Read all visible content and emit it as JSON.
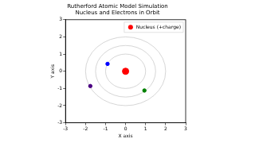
{
  "chart_data": {
    "type": "scatter",
    "title": "Rutherford Atomic Model Simulation",
    "subtitle": "Nucleus and Electrons in Orbit",
    "x_label": "X axis",
    "y_label": "Y axis",
    "xlim": [
      -3,
      3
    ],
    "ylim": [
      -3,
      3
    ],
    "xticks": [
      -3,
      -2,
      -1,
      0,
      1,
      2,
      3
    ],
    "yticks": [
      -3,
      -2,
      -1,
      0,
      1,
      2,
      3
    ],
    "grid": false,
    "legend": "upper right",
    "orbits": {
      "center": [
        0,
        0
      ],
      "radii": [
        1,
        1.5,
        2
      ]
    },
    "series": [
      {
        "name": "Nucleus (+charge)",
        "color": "#ff0000",
        "marker": "circle",
        "x": [
          0
        ],
        "y": [
          0
        ]
      },
      {
        "color": "#0000ff",
        "marker": "circle",
        "x": [
          -0.9
        ],
        "y": [
          0.43
        ]
      },
      {
        "color": "#008000",
        "marker": "circle",
        "x": [
          0.94
        ],
        "y": [
          -1.12
        ]
      },
      {
        "color": "#4b0082",
        "marker": "circle",
        "x": [
          -1.76
        ],
        "y": [
          -0.86
        ]
      }
    ]
  }
}
